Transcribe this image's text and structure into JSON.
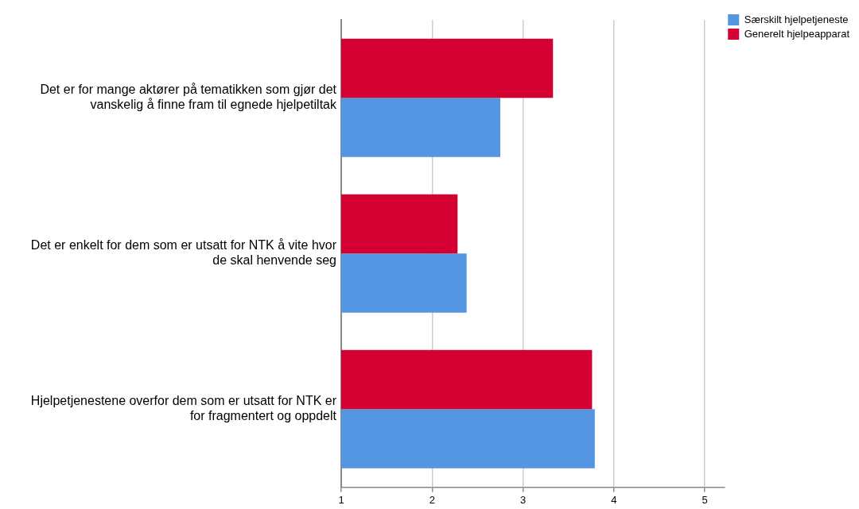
{
  "chart_data": {
    "type": "bar",
    "orientation": "horizontal",
    "categories": [
      "Det er for mange aktører på tematikken som gjør det vanskelig å finne fram til egnede hjelpetiltak",
      "Det er enkelt for dem som er utsatt for NTK å vite hvor de skal henvende seg",
      "Hjelpetjenestene overfor dem som er utsatt for NTK er for fragmentert og oppdelt"
    ],
    "series": [
      {
        "name": "Generelt hjelpeapparat",
        "color": "#d50032",
        "values": [
          3.33,
          2.28,
          3.76
        ]
      },
      {
        "name": "Særskilt hjelpetjeneste",
        "color": "#5596e3",
        "values": [
          2.75,
          2.38,
          3.79
        ]
      }
    ],
    "xlim": [
      1,
      5.22
    ],
    "xticks": [
      1,
      2,
      3,
      4,
      5
    ],
    "grid": "x",
    "legend": "top right"
  }
}
